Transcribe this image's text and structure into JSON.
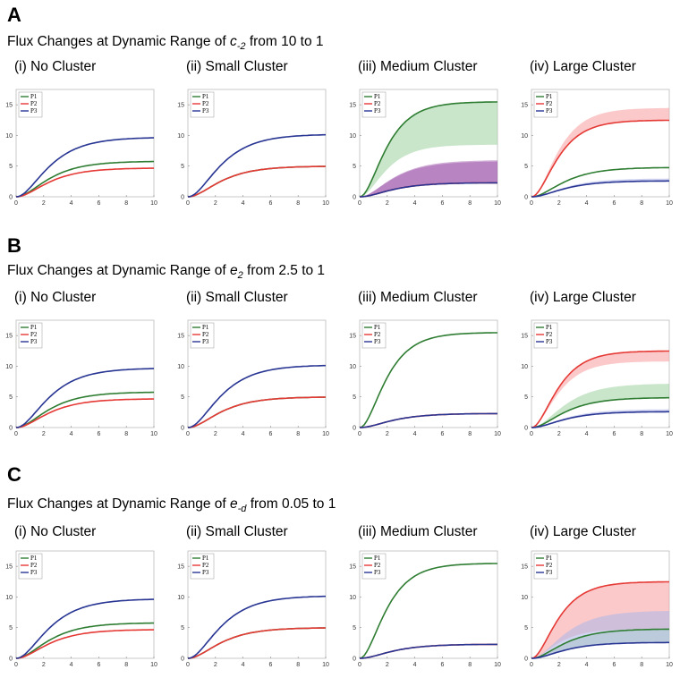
{
  "panels": [
    {
      "letter": "A",
      "title_prefix": "Flux Changes at Dynamic Range of ",
      "var_main": "c",
      "var_sub": "-2",
      "title_suffix": " from 10 to 1"
    },
    {
      "letter": "B",
      "title_prefix": "Flux Changes at Dynamic Range of ",
      "var_main": "e",
      "var_sub": "2",
      "title_suffix": " from 2.5 to 1"
    },
    {
      "letter": "C",
      "title_prefix": "Flux Changes at Dynamic Range of ",
      "var_main": "e",
      "var_sub": "-d",
      "title_suffix": " from 0.05 to 1"
    }
  ],
  "colors": {
    "P1": "#2e7d32",
    "P2": "#e53935",
    "P3": "#283593",
    "P1_band": "#a5d6a7",
    "P2_band": "#f8a5a5",
    "P3_band": "#b3b9e8",
    "purple_band": "#9c4fa8"
  },
  "chart_data": [
    {
      "type": "line",
      "panel": "A",
      "title": "(i) No Cluster",
      "xlim": [
        0,
        10
      ],
      "ylim": [
        0,
        17.5
      ],
      "xticks": [
        0,
        2,
        4,
        6,
        8,
        10
      ],
      "yticks": [
        0,
        5,
        10,
        15
      ],
      "legend": [
        "P1",
        "P2",
        "P3"
      ],
      "legend_position": "top-left",
      "series": [
        {
          "name": "P1",
          "final": 5.8
        },
        {
          "name": "P2",
          "final": 4.7
        },
        {
          "name": "P3",
          "final": 9.7
        }
      ]
    },
    {
      "type": "line",
      "panel": "A",
      "title": "(ii) Small Cluster",
      "xlim": [
        0,
        10
      ],
      "ylim": [
        0,
        17.5
      ],
      "xticks": [
        0,
        2,
        4,
        6,
        8,
        10
      ],
      "yticks": [
        0,
        5,
        10,
        15
      ],
      "legend": [
        "P1",
        "P2",
        "P3"
      ],
      "legend_position": "top-left",
      "series": [
        {
          "name": "P1",
          "final": 5.0
        },
        {
          "name": "P2",
          "final": 5.0
        },
        {
          "name": "P3",
          "final": 10.2
        }
      ]
    },
    {
      "type": "area",
      "panel": "A",
      "title": "(iii) Medium Cluster",
      "xlim": [
        0,
        10
      ],
      "ylim": [
        0,
        17.5
      ],
      "xticks": [
        0,
        2,
        4,
        6,
        8,
        10
      ],
      "yticks": [
        0,
        5,
        10,
        15
      ],
      "legend": [
        "P1",
        "P2",
        "P3"
      ],
      "legend_position": "top-left",
      "series": [
        {
          "name": "P1",
          "final": 15.5,
          "band_final": 8.5
        },
        {
          "name": "P2",
          "final": 2.3,
          "band_final": 5.8
        },
        {
          "name": "P3",
          "final": 2.3,
          "band_final": 6.0
        }
      ]
    },
    {
      "type": "area",
      "panel": "A",
      "title": "(iv) Large Cluster",
      "xlim": [
        0,
        10
      ],
      "ylim": [
        0,
        17.5
      ],
      "xticks": [
        0,
        2,
        4,
        6,
        8,
        10
      ],
      "yticks": [
        0,
        5,
        10,
        15
      ],
      "legend": [
        "P1",
        "P2",
        "P3"
      ],
      "legend_position": "top-left",
      "series": [
        {
          "name": "P1",
          "final": 4.8
        },
        {
          "name": "P2",
          "final": 12.5,
          "band_final": 14.5
        },
        {
          "name": "P3",
          "final": 2.6,
          "band_final": 3.0
        }
      ]
    },
    {
      "type": "line",
      "panel": "B",
      "title": "(i) No Cluster",
      "xlim": [
        0,
        10
      ],
      "ylim": [
        0,
        17.5
      ],
      "xticks": [
        0,
        2,
        4,
        6,
        8,
        10
      ],
      "yticks": [
        0,
        5,
        10,
        15
      ],
      "legend": [
        "P1",
        "P2",
        "P3"
      ],
      "legend_position": "top-left",
      "series": [
        {
          "name": "P1",
          "final": 5.8
        },
        {
          "name": "P2",
          "final": 4.7
        },
        {
          "name": "P3",
          "final": 9.7
        }
      ]
    },
    {
      "type": "line",
      "panel": "B",
      "title": "(ii) Small Cluster",
      "xlim": [
        0,
        10
      ],
      "ylim": [
        0,
        17.5
      ],
      "xticks": [
        0,
        2,
        4,
        6,
        8,
        10
      ],
      "yticks": [
        0,
        5,
        10,
        15
      ],
      "legend": [
        "P1",
        "P2",
        "P3"
      ],
      "legend_position": "top-left",
      "series": [
        {
          "name": "P1",
          "final": 5.0
        },
        {
          "name": "P2",
          "final": 5.0
        },
        {
          "name": "P3",
          "final": 10.2
        }
      ]
    },
    {
      "type": "line",
      "panel": "B",
      "title": "(iii) Medium Cluster",
      "xlim": [
        0,
        10
      ],
      "ylim": [
        0,
        17.5
      ],
      "xticks": [
        0,
        2,
        4,
        6,
        8,
        10
      ],
      "yticks": [
        0,
        5,
        10,
        15
      ],
      "legend": [
        "P1",
        "P2",
        "P3"
      ],
      "legend_position": "top-left",
      "series": [
        {
          "name": "P1",
          "final": 15.5
        },
        {
          "name": "P2",
          "final": 2.3
        },
        {
          "name": "P3",
          "final": 2.3
        }
      ]
    },
    {
      "type": "area",
      "panel": "B",
      "title": "(iv) Large Cluster",
      "xlim": [
        0,
        10
      ],
      "ylim": [
        0,
        17.5
      ],
      "xticks": [
        0,
        2,
        4,
        6,
        8,
        10
      ],
      "yticks": [
        0,
        5,
        10,
        15
      ],
      "legend": [
        "P1",
        "P2",
        "P3"
      ],
      "legend_position": "top-left",
      "series": [
        {
          "name": "P1",
          "final": 4.9,
          "band_final": 7.2
        },
        {
          "name": "P2",
          "final": 12.5,
          "band_final": 10.8
        },
        {
          "name": "P3",
          "final": 2.6,
          "band_final": 3.0
        }
      ]
    },
    {
      "type": "line",
      "panel": "C",
      "title": "(i) No Cluster",
      "xlim": [
        0,
        10
      ],
      "ylim": [
        0,
        17.5
      ],
      "xticks": [
        0,
        2,
        4,
        6,
        8,
        10
      ],
      "yticks": [
        0,
        5,
        10,
        15
      ],
      "legend": [
        "P1",
        "P2",
        "P3"
      ],
      "legend_position": "top-left",
      "series": [
        {
          "name": "P1",
          "final": 5.8
        },
        {
          "name": "P2",
          "final": 4.7
        },
        {
          "name": "P3",
          "final": 9.7
        }
      ]
    },
    {
      "type": "line",
      "panel": "C",
      "title": "(ii) Small Cluster",
      "xlim": [
        0,
        10
      ],
      "ylim": [
        0,
        17.5
      ],
      "xticks": [
        0,
        2,
        4,
        6,
        8,
        10
      ],
      "yticks": [
        0,
        5,
        10,
        15
      ],
      "legend": [
        "P1",
        "P2",
        "P3"
      ],
      "legend_position": "top-left",
      "series": [
        {
          "name": "P1",
          "final": 5.0
        },
        {
          "name": "P2",
          "final": 5.0
        },
        {
          "name": "P3",
          "final": 10.2
        }
      ]
    },
    {
      "type": "line",
      "panel": "C",
      "title": "(iii) Medium Cluster",
      "xlim": [
        0,
        10
      ],
      "ylim": [
        0,
        17.5
      ],
      "xticks": [
        0,
        2,
        4,
        6,
        8,
        10
      ],
      "yticks": [
        0,
        5,
        10,
        15
      ],
      "legend": [
        "P1",
        "P2",
        "P3"
      ],
      "legend_position": "top-left",
      "series": [
        {
          "name": "P1",
          "final": 15.5
        },
        {
          "name": "P2",
          "final": 2.3
        },
        {
          "name": "P3",
          "final": 2.3
        }
      ]
    },
    {
      "type": "area",
      "panel": "C",
      "title": "(iv) Large Cluster",
      "xlim": [
        0,
        10
      ],
      "ylim": [
        0,
        17.5
      ],
      "xticks": [
        0,
        2,
        4,
        6,
        8,
        10
      ],
      "yticks": [
        0,
        5,
        10,
        15
      ],
      "legend": [
        "P1",
        "P2",
        "P3"
      ],
      "legend_position": "top-left",
      "series": [
        {
          "name": "P1",
          "final": 4.8,
          "band_final": 2.6
        },
        {
          "name": "P2",
          "final": 12.5,
          "band_final": 4.8
        },
        {
          "name": "P3",
          "final": 2.6,
          "band_final": 7.8
        }
      ]
    }
  ]
}
